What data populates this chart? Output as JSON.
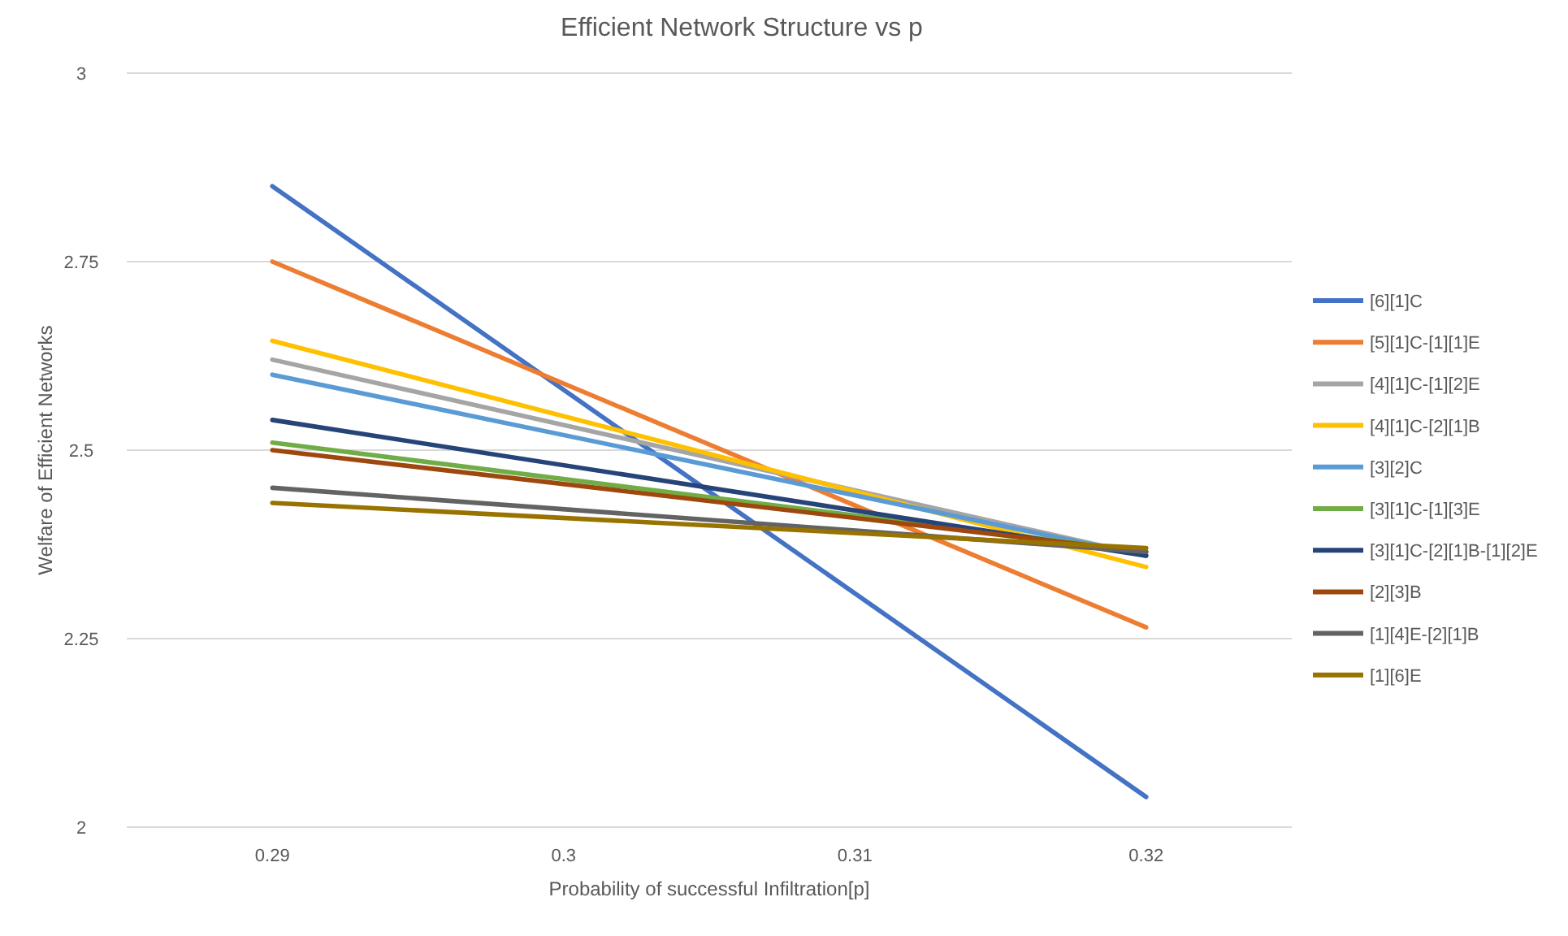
{
  "chart_data": {
    "type": "line",
    "title": "Efficient Network Structure vs p",
    "xlabel": "Probability of successful Infiltration[p]",
    "ylabel": "Welfare of Efficient Networks",
    "x": [
      0.29,
      0.32
    ],
    "xlim": [
      0.285,
      0.325
    ],
    "xticks": [
      0.29,
      0.3,
      0.31,
      0.32
    ],
    "ylim": [
      2,
      3
    ],
    "yticks": [
      2,
      2.25,
      2.5,
      2.75,
      3
    ],
    "grid": "y",
    "legend": "right",
    "marker": "none",
    "line_style": "solid",
    "series": [
      {
        "name": "[6][1]C",
        "color": "#4472c4",
        "values": [
          2.85,
          2.04
        ]
      },
      {
        "name": "[5][1]C-[1][1]E",
        "color": "#ed7d31",
        "values": [
          2.75,
          2.265
        ]
      },
      {
        "name": "[4][1]C-[1][2]E",
        "color": "#a5a5a5",
        "values": [
          2.62,
          2.36
        ]
      },
      {
        "name": "[4][1]C-[2][1]B",
        "color": "#ffc000",
        "values": [
          2.645,
          2.345
        ]
      },
      {
        "name": "[3][2]C",
        "color": "#5b9bd5",
        "values": [
          2.6,
          2.36
        ]
      },
      {
        "name": "[3][1]C-[1][3]E",
        "color": "#70ad47",
        "values": [
          2.51,
          2.365
        ]
      },
      {
        "name": "[3][1]C-[2][1]B-[1][2]E",
        "color": "#264478",
        "values": [
          2.54,
          2.36
        ]
      },
      {
        "name": "[2][3]B",
        "color": "#9e480e",
        "values": [
          2.5,
          2.365
        ]
      },
      {
        "name": "[1][4]E-[2][1]B",
        "color": "#636363",
        "values": [
          2.45,
          2.365
        ]
      },
      {
        "name": "[1][6]E",
        "color": "#997300",
        "values": [
          2.43,
          2.37
        ]
      }
    ]
  }
}
